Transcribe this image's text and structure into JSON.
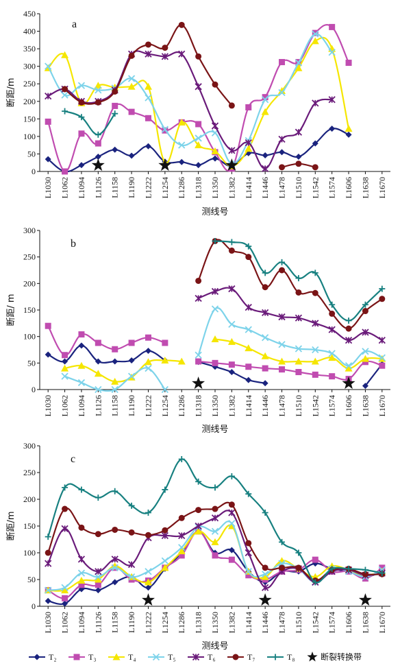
{
  "chart_data": [
    {
      "panel_label": "a",
      "type": "line",
      "xlabel": "测线号",
      "ylabel": "断距/m",
      "ylim": [
        0,
        450
      ],
      "yticks": [
        0,
        50,
        100,
        150,
        200,
        250,
        300,
        350,
        400,
        450
      ],
      "categories": [
        "L1030",
        "L1062",
        "L1094",
        "L1126",
        "L1158",
        "L1190",
        "L1222",
        "L1254",
        "L1286",
        "L1318",
        "L1350",
        "L1382",
        "L1414",
        "L1446",
        "L1478",
        "L1510",
        "L1542",
        "L1574",
        "L1606",
        "L1638",
        "L1670"
      ],
      "series": [
        {
          "key": "T2",
          "values": [
            35,
            0,
            18,
            42,
            62,
            45,
            72,
            28,
            27,
            18,
            37,
            15,
            52,
            46,
            55,
            42,
            80,
            122,
            105,
            null,
            null
          ]
        },
        {
          "key": "T3",
          "values": [
            142,
            0,
            108,
            80,
            187,
            170,
            152,
            117,
            140,
            135,
            55,
            8,
            183,
            212,
            312,
            312,
            395,
            412,
            310,
            null,
            null
          ]
        },
        {
          "key": "T4",
          "values": [
            295,
            332,
            195,
            245,
            240,
            242,
            242,
            25,
            140,
            75,
            58,
            15,
            65,
            170,
            230,
            295,
            372,
            350,
            122,
            null,
            null
          ]
        },
        {
          "key": "T5",
          "values": [
            300,
            218,
            245,
            232,
            238,
            265,
            210,
            120,
            75,
            95,
            110,
            22,
            88,
            205,
            225,
            310,
            392,
            340,
            null,
            null,
            null
          ]
        },
        {
          "key": "T6",
          "values": [
            215,
            235,
            200,
            200,
            232,
            335,
            335,
            328,
            335,
            242,
            130,
            60,
            82,
            8,
            92,
            112,
            195,
            205,
            null,
            null,
            null
          ]
        },
        {
          "key": "T7",
          "values": [
            null,
            235,
            197,
            197,
            228,
            330,
            362,
            353,
            418,
            328,
            248,
            188,
            null,
            null,
            12,
            22,
            12,
            null,
            null,
            null,
            null
          ]
        },
        {
          "key": "T8",
          "values": [
            null,
            172,
            155,
            105,
            165,
            null,
            null,
            null,
            null,
            null,
            null,
            null,
            null,
            null,
            null,
            null,
            null,
            null,
            null,
            null,
            null
          ]
        }
      ],
      "fault_transfer_zones": [
        "L1126",
        "L1254",
        "L1382"
      ]
    },
    {
      "panel_label": "b",
      "type": "line",
      "xlabel": "测线号",
      "ylabel": "断距/ m",
      "ylim": [
        0,
        300
      ],
      "yticks": [
        0,
        50,
        100,
        150,
        200,
        250,
        300
      ],
      "categories": [
        "L1030",
        "L1062",
        "L1094",
        "L1126",
        "L1158",
        "L1190",
        "L1222",
        "L1254",
        "L1286",
        "L1318",
        "L1350",
        "L1382",
        "L1414",
        "L1446",
        "L1478",
        "L1510",
        "L1542",
        "L1574",
        "L1606",
        "L1638",
        "L1670"
      ],
      "series": [
        {
          "key": "T2",
          "values": [
            66,
            53,
            83,
            53,
            53,
            55,
            73,
            55,
            null,
            52,
            43,
            33,
            18,
            12,
            null,
            null,
            null,
            null,
            null,
            7,
            48
          ]
        },
        {
          "key": "T3",
          "values": [
            120,
            65,
            104,
            88,
            76,
            88,
            98,
            88,
            null,
            53,
            50,
            47,
            43,
            40,
            38,
            33,
            28,
            25,
            20,
            52,
            45
          ]
        },
        {
          "key": "T4",
          "values": [
            null,
            40,
            45,
            30,
            15,
            23,
            52,
            55,
            53,
            null,
            95,
            90,
            78,
            63,
            53,
            53,
            53,
            60,
            40,
            58,
            58
          ]
        },
        {
          "key": "T5",
          "values": [
            null,
            25,
            13,
            0,
            0,
            25,
            40,
            0,
            null,
            65,
            152,
            123,
            113,
            98,
            85,
            77,
            75,
            68,
            45,
            72,
            60
          ]
        },
        {
          "key": "T6",
          "values": [
            null,
            null,
            null,
            null,
            null,
            null,
            null,
            null,
            null,
            172,
            185,
            190,
            155,
            145,
            137,
            135,
            125,
            113,
            93,
            108,
            93
          ]
        },
        {
          "key": "T7",
          "values": [
            null,
            null,
            null,
            null,
            null,
            null,
            null,
            null,
            null,
            205,
            280,
            262,
            250,
            193,
            225,
            183,
            182,
            143,
            115,
            148,
            171
          ]
        },
        {
          "key": "T8",
          "values": [
            null,
            null,
            null,
            null,
            null,
            null,
            null,
            null,
            null,
            null,
            280,
            278,
            270,
            220,
            240,
            210,
            220,
            160,
            130,
            160,
            190
          ]
        }
      ],
      "fault_transfer_zones": [
        "L1318",
        "L1606"
      ]
    },
    {
      "panel_label": "c",
      "type": "line",
      "xlabel": "测线号",
      "ylabel": "断距/m",
      "ylim": [
        0,
        300
      ],
      "yticks": [
        0,
        50,
        100,
        150,
        200,
        250,
        300
      ],
      "categories": [
        "L1030",
        "L1062",
        "L1094",
        "L1126",
        "L1158",
        "L1190",
        "L1222",
        "L1254",
        "L1286",
        "L1318",
        "L1350",
        "L1382",
        "L1414",
        "L1446",
        "L1478",
        "L1510",
        "L1542",
        "L1574",
        "L1606",
        "L1638",
        "L1670"
      ],
      "series": [
        {
          "key": "T2",
          "values": [
            10,
            5,
            32,
            30,
            45,
            55,
            35,
            70,
            100,
            140,
            100,
            105,
            65,
            45,
            65,
            65,
            80,
            70,
            65,
            55,
            65
          ]
        },
        {
          "key": "T3",
          "values": [
            30,
            15,
            40,
            40,
            72,
            50,
            48,
            72,
            95,
            140,
            95,
            87,
            58,
            50,
            65,
            68,
            87,
            65,
            65,
            52,
            72
          ]
        },
        {
          "key": "T4",
          "values": [
            30,
            30,
            48,
            50,
            75,
            55,
            45,
            72,
            103,
            140,
            120,
            150,
            65,
            55,
            85,
            70,
            55,
            75,
            68,
            58,
            65
          ]
        },
        {
          "key": "T5",
          "values": [
            30,
            35,
            62,
            55,
            72,
            55,
            65,
            85,
            110,
            148,
            140,
            155,
            65,
            60,
            80,
            70,
            45,
            70,
            65,
            55,
            68
          ]
        },
        {
          "key": "T6",
          "values": [
            80,
            145,
            88,
            65,
            88,
            78,
            128,
            132,
            132,
            150,
            165,
            175,
            100,
            35,
            65,
            70,
            45,
            65,
            68,
            58,
            62
          ]
        },
        {
          "key": "T7",
          "values": [
            100,
            182,
            147,
            135,
            143,
            138,
            133,
            142,
            165,
            180,
            182,
            190,
            118,
            72,
            72,
            72,
            48,
            68,
            70,
            60,
            60
          ]
        },
        {
          "key": "T8",
          "values": [
            130,
            222,
            218,
            203,
            215,
            188,
            175,
            218,
            275,
            233,
            222,
            243,
            210,
            175,
            120,
            100,
            45,
            70,
            70,
            68,
            62
          ]
        }
      ],
      "fault_transfer_zones": [
        "L1222",
        "L1446",
        "L1638"
      ]
    }
  ],
  "legend": {
    "items": [
      {
        "key": "T2",
        "label": "T₂",
        "color": "#1a237e",
        "marker": "diamond"
      },
      {
        "key": "T3",
        "label": "T₃",
        "color": "#c04cb0",
        "marker": "square"
      },
      {
        "key": "T4",
        "label": "T₄",
        "color": "#f5e600",
        "marker": "triangle"
      },
      {
        "key": "T5",
        "label": "T₅",
        "color": "#7dd3ea",
        "marker": "x"
      },
      {
        "key": "T6",
        "label": "T₆",
        "color": "#6a1b7a",
        "marker": "star-x"
      },
      {
        "key": "T7",
        "label": "T₇",
        "color": "#7a1416",
        "marker": "circle"
      },
      {
        "key": "T8",
        "label": "T₈",
        "color": "#178080",
        "marker": "plus"
      }
    ],
    "fault_label": "断裂转换带"
  }
}
